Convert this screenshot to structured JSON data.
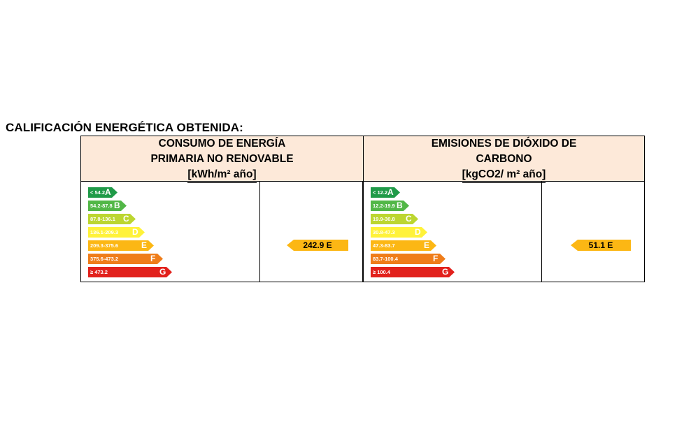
{
  "heading": "CALIFICACIÓN ENERGÉTICA OBTENIDA:",
  "consumo": {
    "header_lines": [
      "CONSUMO DE ENERGÍA",
      "PRIMARIA NO RENOVABLE",
      "[kWh/m² año]"
    ],
    "scale": [
      {
        "range": "< 54.2",
        "letter": "A",
        "color": "#1f9a48"
      },
      {
        "range": "54.2-87.8",
        "letter": "B",
        "color": "#52b747"
      },
      {
        "range": "87.8-136.1",
        "letter": "C",
        "color": "#bcd630"
      },
      {
        "range": "136.1-209.3",
        "letter": "D",
        "color": "#fff23a"
      },
      {
        "range": "209.3-375.6",
        "letter": "E",
        "color": "#fcb714"
      },
      {
        "range": "375.6-473.2",
        "letter": "F",
        "color": "#ef7d1a"
      },
      {
        "range": "≥ 473.2",
        "letter": "G",
        "color": "#e2211c"
      }
    ],
    "value": "242.9 E",
    "rating": "E"
  },
  "emisiones": {
    "header_lines": [
      "EMISIONES DE DIÓXIDO DE",
      "CARBONO",
      "[kgCO2/ m² año]"
    ],
    "scale": [
      {
        "range": "< 12.2",
        "letter": "A",
        "color": "#1f9a48"
      },
      {
        "range": "12.2-19.9",
        "letter": "B",
        "color": "#52b747"
      },
      {
        "range": "19.9-30.8",
        "letter": "C",
        "color": "#bcd630"
      },
      {
        "range": "30.8-47.3",
        "letter": "D",
        "color": "#fff23a"
      },
      {
        "range": "47.3-83.7",
        "letter": "E",
        "color": "#fcb714"
      },
      {
        "range": "83.7-100.4",
        "letter": "F",
        "color": "#ef7d1a"
      },
      {
        "range": "≥ 100.4",
        "letter": "G",
        "color": "#e2211c"
      }
    ],
    "value": "51.1 E",
    "rating": "E"
  },
  "marker_color": "#fcb714"
}
